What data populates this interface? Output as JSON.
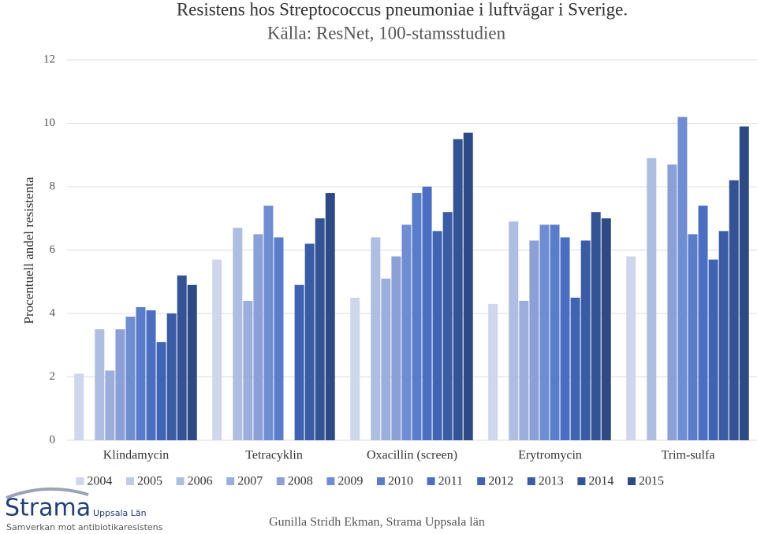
{
  "chart_data": {
    "type": "bar",
    "title": "Resistens hos Streptococcus pneumoniae i luftvägar i Sverige.",
    "subtitle": "Källa: ResNet, 100-stamsstudien",
    "y_label": "Procentuell andel resistenta",
    "categories": [
      "Klindamycin",
      "Tetracyklin",
      "Oxacillin (screen)",
      "Erytromycin",
      "Trim-sulfa"
    ],
    "series": [
      {
        "name": "2004",
        "color": "#cfd7ec",
        "values": [
          2.1,
          5.7,
          4.5,
          4.3,
          5.8
        ]
      },
      {
        "name": "2005",
        "color": "#bfcbe7",
        "values": [
          null,
          null,
          null,
          null,
          null
        ]
      },
      {
        "name": "2006",
        "color": "#aebde2",
        "values": [
          3.5,
          6.7,
          6.4,
          6.9,
          8.9
        ]
      },
      {
        "name": "2007",
        "color": "#9cafdc",
        "values": [
          2.2,
          4.4,
          5.1,
          4.4,
          null
        ]
      },
      {
        "name": "2008",
        "color": "#8aa0d6",
        "values": [
          3.5,
          6.5,
          5.8,
          6.3,
          8.7
        ]
      },
      {
        "name": "2009",
        "color": "#6f8dd2",
        "values": [
          3.9,
          7.4,
          6.8,
          6.8,
          10.2
        ]
      },
      {
        "name": "2010",
        "color": "#5a7dcb",
        "values": [
          4.2,
          6.4,
          7.8,
          6.8,
          6.5
        ]
      },
      {
        "name": "2011",
        "color": "#4a6fc2",
        "values": [
          4.1,
          null,
          8.0,
          6.4,
          7.4
        ]
      },
      {
        "name": "2012",
        "color": "#3f64b3",
        "values": [
          3.1,
          4.9,
          6.6,
          4.5,
          5.7
        ]
      },
      {
        "name": "2013",
        "color": "#3a5ca5",
        "values": [
          4.0,
          6.2,
          7.2,
          6.3,
          6.6
        ]
      },
      {
        "name": "2014",
        "color": "#345395",
        "values": [
          5.2,
          7.0,
          9.5,
          7.2,
          8.2
        ]
      },
      {
        "name": "2015",
        "color": "#2d4a86",
        "values": [
          4.9,
          7.8,
          9.7,
          7.0,
          9.9
        ]
      }
    ],
    "ylim": [
      0,
      12
    ],
    "yticks": [
      0,
      2,
      4,
      6,
      8,
      10,
      12
    ],
    "grid": true,
    "legend": "bottom"
  },
  "logo": {
    "name": "Strama",
    "region": "Uppsala Län",
    "tagline": "Samverkan mot antibiotikaresistens"
  },
  "footer": "Gunilla Stridh Ekman, Strama Uppsala län"
}
